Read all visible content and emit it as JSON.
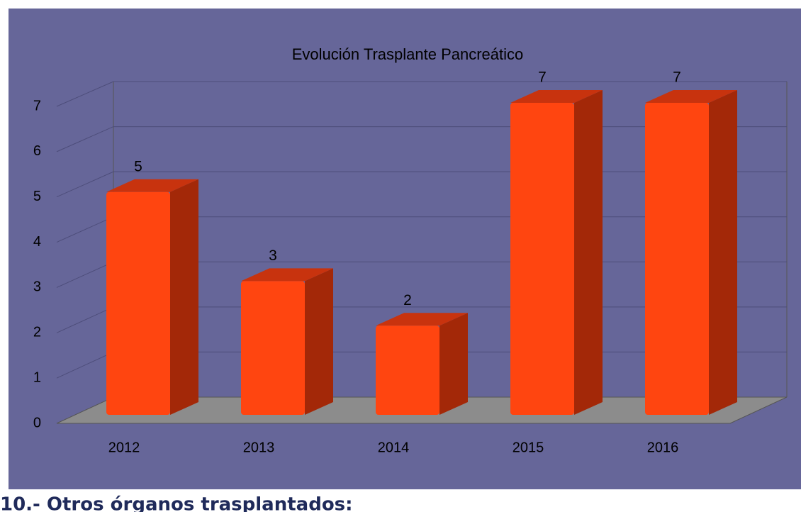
{
  "chart_data": {
    "type": "bar3d",
    "title": "Evolución Trasplante Pancreático",
    "categories": [
      "2012",
      "2013",
      "2014",
      "2015",
      "2016"
    ],
    "values": [
      5,
      3,
      2,
      7,
      7
    ],
    "color": "#ff4510",
    "ylim": [
      0,
      7
    ],
    "yticks": [
      0,
      1,
      2,
      3,
      4,
      5,
      6,
      7
    ],
    "grid": true
  },
  "heading": "10.- Otros órganos trasplantados:"
}
